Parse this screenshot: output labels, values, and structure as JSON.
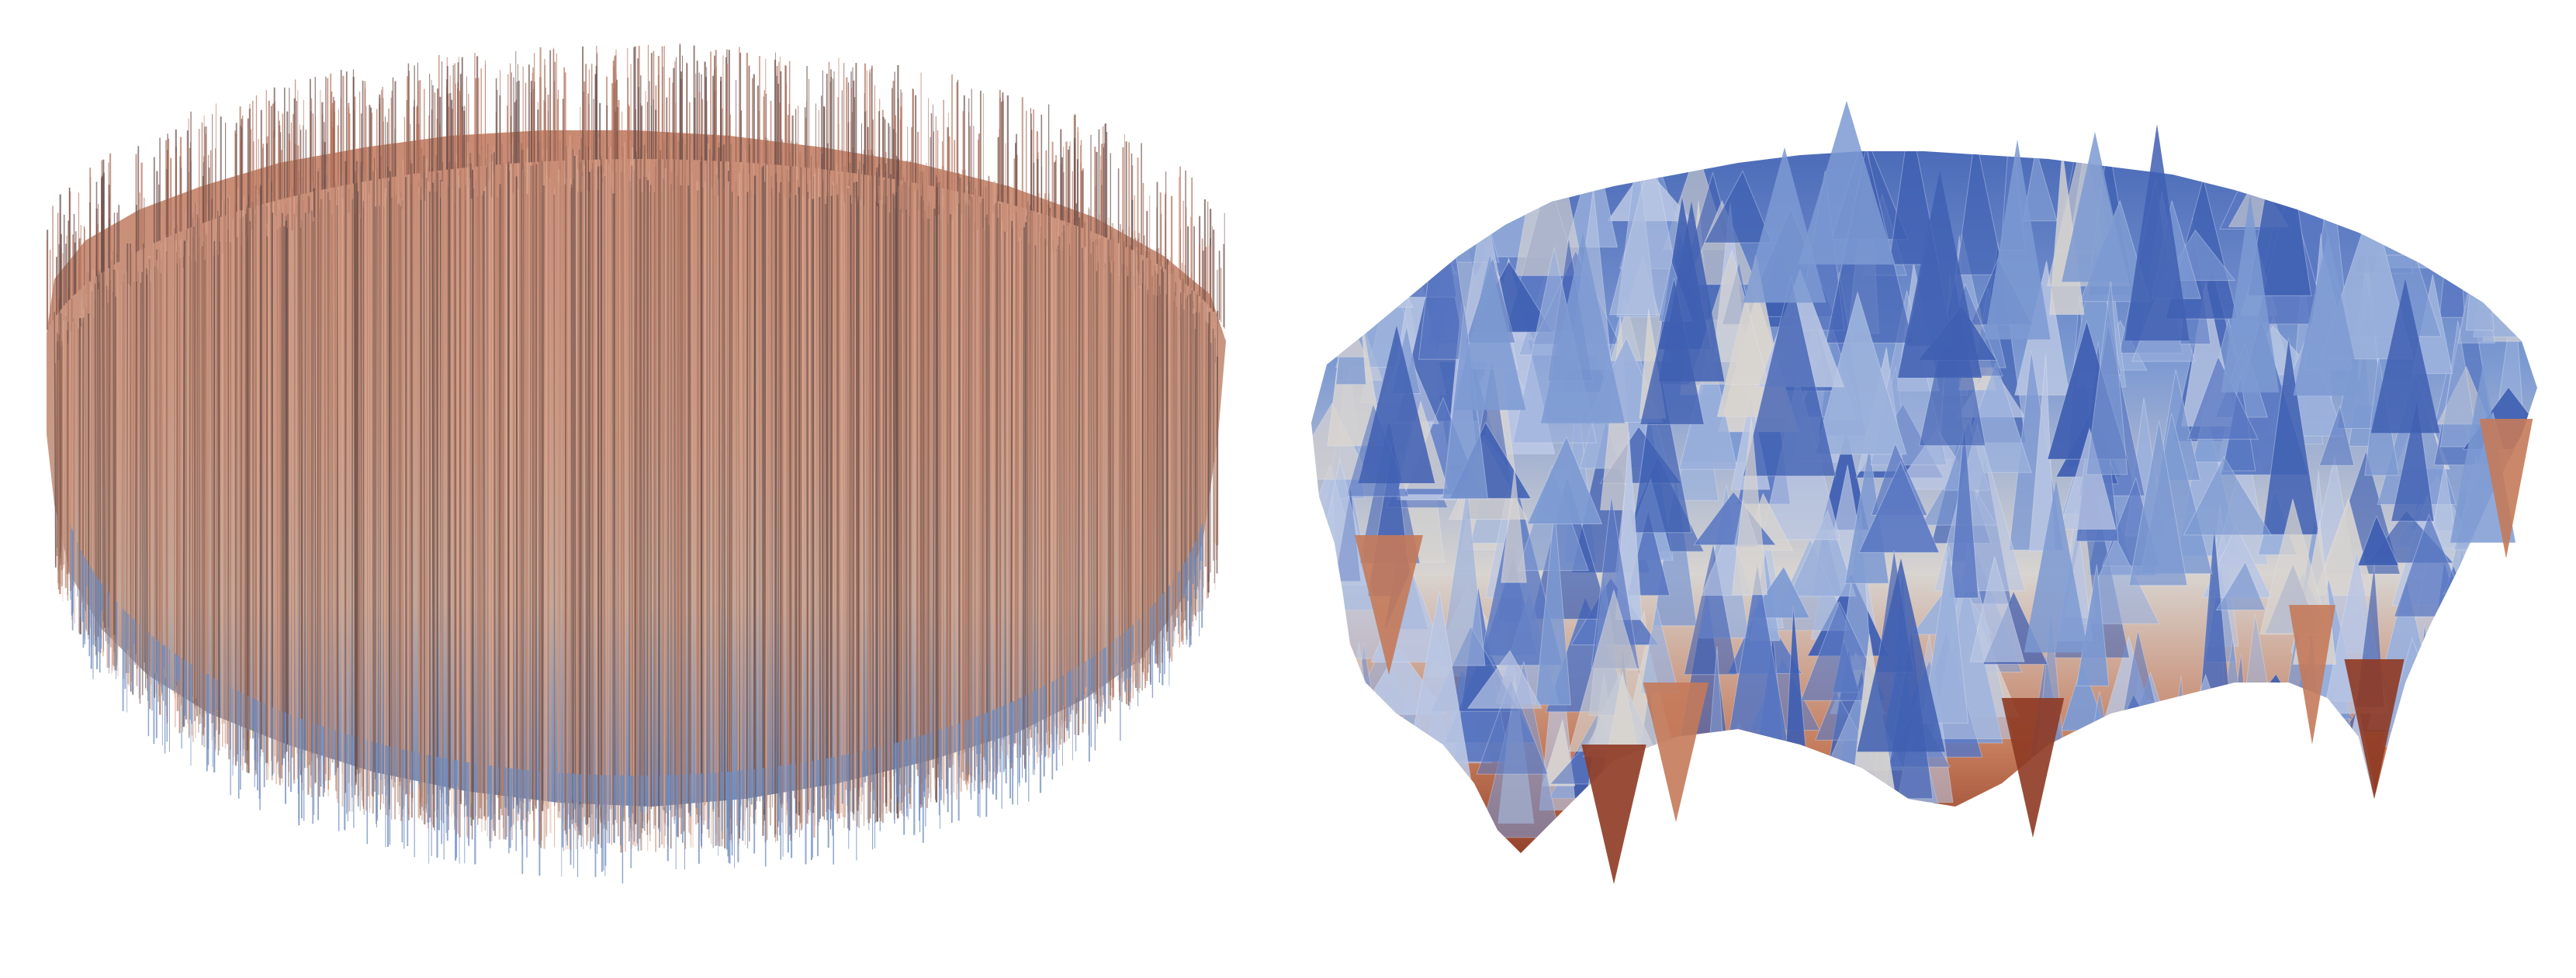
{
  "panels": [
    {
      "id": "left",
      "content": "",
      "shape": "spiky-ellipse",
      "colors": {
        "top": "#c98a72",
        "mid": "#c2a79a",
        "bottom": "#6f8cbf",
        "ink": "#6b4f4a"
      }
    },
    {
      "id": "right",
      "content": "",
      "shape": "mountainous-surface",
      "colors": {
        "peak": "#3f5fb2",
        "high": "#7d9ad2",
        "mid": "#d8d4d0",
        "low": "#c47a5a",
        "valley": "#8e3a24"
      }
    }
  ]
}
